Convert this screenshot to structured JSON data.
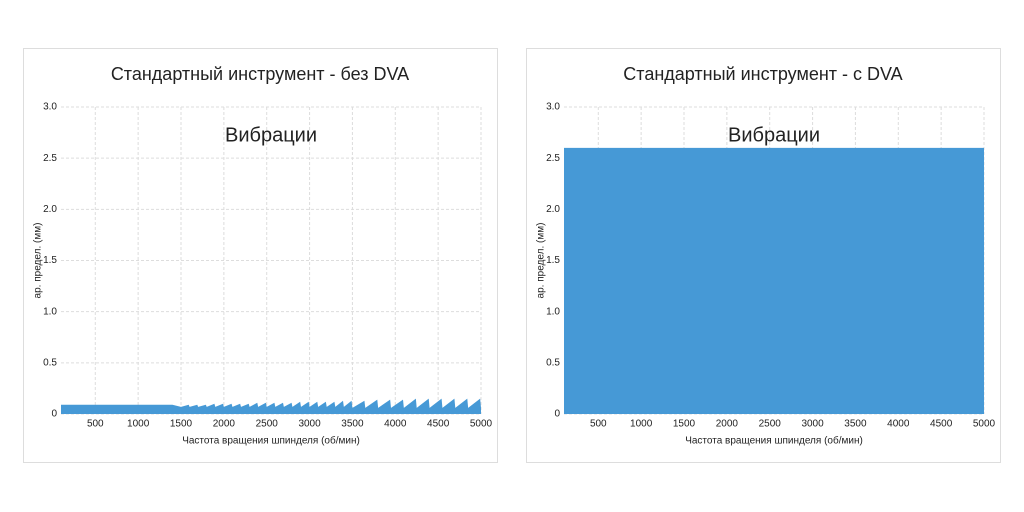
{
  "chart_data": [
    {
      "type": "area",
      "title": "Стандартный инструмент - без DVA",
      "annotation": "Вибрации",
      "x_label": "Частота вращения шпинделя (об/мин)",
      "y_label": "ар. предел. (мм)",
      "color": "#4699d6",
      "grid": true,
      "xlim": [
        100,
        5000
      ],
      "ylim": [
        0,
        3
      ],
      "xticks": [
        500,
        1000,
        1500,
        2000,
        2500,
        3000,
        3500,
        4000,
        4500,
        5000
      ],
      "yticks": [
        0,
        0.5,
        {
          "value": 1,
          "label": "1.0"
        },
        1.5,
        {
          "value": 2,
          "label": "2.0"
        },
        2.5,
        {
          "value": 3,
          "label": "3.0"
        }
      ],
      "x": [
        100,
        1400,
        1500,
        1590,
        1600,
        1690,
        1700,
        1790,
        1800,
        1890,
        1900,
        1990,
        2000,
        2090,
        2100,
        2190,
        2200,
        2290,
        2300,
        2390,
        2400,
        2490,
        2500,
        2590,
        2600,
        2690,
        2700,
        2790,
        2800,
        2890,
        2900,
        2990,
        3000,
        3090,
        3100,
        3190,
        3200,
        3290,
        3300,
        3390,
        3400,
        3490,
        3500,
        3640,
        3650,
        3790,
        3800,
        3940,
        3950,
        4090,
        4100,
        4240,
        4250,
        4390,
        4400,
        4540,
        4550,
        4690,
        4700,
        4840,
        4850,
        4990,
        5000
      ],
      "values": [
        0.09,
        0.09,
        0.07,
        0.09,
        0.07,
        0.09,
        0.07,
        0.09,
        0.07,
        0.1,
        0.07,
        0.1,
        0.07,
        0.1,
        0.07,
        0.1,
        0.07,
        0.1,
        0.07,
        0.11,
        0.07,
        0.11,
        0.07,
        0.11,
        0.07,
        0.11,
        0.07,
        0.11,
        0.07,
        0.12,
        0.07,
        0.12,
        0.07,
        0.12,
        0.07,
        0.12,
        0.07,
        0.12,
        0.07,
        0.13,
        0.07,
        0.13,
        0.06,
        0.13,
        0.06,
        0.14,
        0.06,
        0.14,
        0.06,
        0.14,
        0.06,
        0.15,
        0.06,
        0.15,
        0.06,
        0.15,
        0.06,
        0.15,
        0.06,
        0.15,
        0.06,
        0.15,
        0.06
      ]
    },
    {
      "type": "area",
      "title": "Стандартный инструмент - с DVA",
      "annotation": "Вибрации",
      "x_label": "Частота вращения шпинделя (об/мин)",
      "y_label": "ар. предел. (мм)",
      "color": "#4699d6",
      "grid": true,
      "xlim": [
        100,
        5000
      ],
      "ylim": [
        0,
        3
      ],
      "xticks": [
        500,
        1000,
        1500,
        2000,
        2500,
        3000,
        3500,
        4000,
        4500,
        5000
      ],
      "yticks": [
        0,
        0.5,
        {
          "value": 1,
          "label": "1.0"
        },
        1.5,
        {
          "value": 2,
          "label": "2.0"
        },
        2.5,
        {
          "value": 3,
          "label": "3.0"
        }
      ],
      "x": [
        100,
        5000
      ],
      "values": [
        2.6,
        2.6
      ]
    }
  ]
}
